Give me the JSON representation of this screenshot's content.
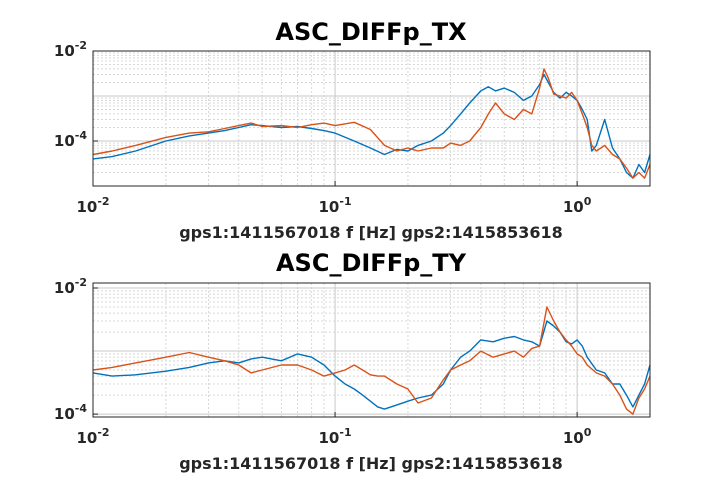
{
  "chart_data": [
    {
      "type": "line",
      "title": "ASC_DIFFp_TX",
      "xlabel": "gps1:1411567018  f [Hz]  gps2:1415853618",
      "xscale": "log",
      "yscale": "log",
      "xlim": [
        0.01,
        2
      ],
      "ylim": [
        1e-05,
        0.01
      ],
      "grid": true,
      "xticks": [
        {
          "base": "10",
          "exp": "-2",
          "value": 0.01
        },
        {
          "base": "10",
          "exp": "-1",
          "value": 0.1
        },
        {
          "base": "10",
          "exp": "0",
          "value": 1
        }
      ],
      "yticks": [
        {
          "base": "10",
          "exp": "-4",
          "value": 0.0001
        },
        {
          "base": "10",
          "exp": "-2",
          "value": 0.01
        }
      ],
      "series": [
        {
          "color": "#0072BD",
          "x": [
            0.01,
            0.012,
            0.015,
            0.02,
            0.025,
            0.03,
            0.035,
            0.04,
            0.045,
            0.05,
            0.06,
            0.07,
            0.08,
            0.09,
            0.1,
            0.12,
            0.14,
            0.16,
            0.18,
            0.2,
            0.22,
            0.25,
            0.28,
            0.3,
            0.33,
            0.36,
            0.4,
            0.43,
            0.46,
            0.5,
            0.55,
            0.6,
            0.65,
            0.7,
            0.73,
            0.76,
            0.8,
            0.85,
            0.9,
            0.95,
            1.0,
            1.05,
            1.1,
            1.15,
            1.2,
            1.3,
            1.4,
            1.5,
            1.6,
            1.7,
            1.8,
            1.9,
            2.0
          ],
          "y": [
            4e-05,
            4.5e-05,
            6e-05,
            0.0001,
            0.00013,
            0.00015,
            0.00017,
            0.0002,
            0.00023,
            0.00022,
            0.0002,
            0.00021,
            0.00019,
            0.00017,
            0.00015,
            0.0001,
            7e-05,
            5e-05,
            6.5e-05,
            6e-05,
            8e-05,
            0.0001,
            0.00015,
            0.00022,
            0.0004,
            0.0007,
            0.0013,
            0.0016,
            0.0013,
            0.0015,
            0.0012,
            0.0008,
            0.001,
            0.0018,
            0.003,
            0.002,
            0.0012,
            0.0009,
            0.0012,
            0.001,
            0.0008,
            0.0005,
            0.0003,
            6e-05,
            8e-05,
            0.0003,
            7e-05,
            4e-05,
            2e-05,
            1.5e-05,
            3e-05,
            2e-05,
            5e-05
          ]
        },
        {
          "color": "#D95319",
          "x": [
            0.01,
            0.012,
            0.015,
            0.02,
            0.025,
            0.03,
            0.035,
            0.04,
            0.045,
            0.05,
            0.06,
            0.07,
            0.08,
            0.09,
            0.1,
            0.12,
            0.14,
            0.16,
            0.18,
            0.2,
            0.22,
            0.25,
            0.28,
            0.3,
            0.33,
            0.36,
            0.4,
            0.43,
            0.46,
            0.5,
            0.55,
            0.6,
            0.65,
            0.7,
            0.73,
            0.76,
            0.8,
            0.85,
            0.9,
            0.95,
            1.0,
            1.05,
            1.1,
            1.15,
            1.2,
            1.3,
            1.4,
            1.5,
            1.6,
            1.7,
            1.8,
            1.9,
            2.0
          ],
          "y": [
            5e-05,
            6e-05,
            8e-05,
            0.00012,
            0.00015,
            0.00016,
            0.00019,
            0.00022,
            0.00025,
            0.00021,
            0.00022,
            0.0002,
            0.00023,
            0.00025,
            0.00022,
            0.00026,
            0.00018,
            8e-05,
            6e-05,
            7e-05,
            6e-05,
            7e-05,
            7e-05,
            9e-05,
            8e-05,
            0.0001,
            0.0002,
            0.0004,
            0.0007,
            0.0004,
            0.0003,
            0.0005,
            0.0004,
            0.0015,
            0.004,
            0.0025,
            0.0011,
            0.001,
            0.0009,
            0.0012,
            0.0008,
            0.0004,
            0.0002,
            8e-05,
            6e-05,
            8e-05,
            5e-05,
            4e-05,
            2.5e-05,
            1.5e-05,
            2e-05,
            1.5e-05,
            3e-05
          ]
        }
      ]
    },
    {
      "type": "line",
      "title": "ASC_DIFFp_TY",
      "xlabel": "gps1:1411567018  f [Hz]  gps2:1415853618",
      "xscale": "log",
      "yscale": "log",
      "xlim": [
        0.01,
        2
      ],
      "ylim": [
        9e-05,
        0.012
      ],
      "grid": true,
      "xticks": [
        {
          "base": "10",
          "exp": "-2",
          "value": 0.01
        },
        {
          "base": "10",
          "exp": "-1",
          "value": 0.1
        },
        {
          "base": "10",
          "exp": "0",
          "value": 1
        }
      ],
      "yticks": [
        {
          "base": "10",
          "exp": "-4",
          "value": 0.0001
        },
        {
          "base": "10",
          "exp": "-2",
          "value": 0.01
        }
      ],
      "series": [
        {
          "color": "#0072BD",
          "x": [
            0.01,
            0.012,
            0.015,
            0.02,
            0.025,
            0.03,
            0.035,
            0.04,
            0.045,
            0.05,
            0.06,
            0.07,
            0.08,
            0.09,
            0.1,
            0.11,
            0.12,
            0.13,
            0.14,
            0.15,
            0.16,
            0.18,
            0.2,
            0.22,
            0.25,
            0.28,
            0.3,
            0.33,
            0.36,
            0.4,
            0.45,
            0.5,
            0.55,
            0.6,
            0.65,
            0.7,
            0.75,
            0.8,
            0.85,
            0.9,
            0.95,
            1.0,
            1.05,
            1.1,
            1.2,
            1.3,
            1.4,
            1.5,
            1.6,
            1.7,
            1.8,
            1.9,
            2.0
          ],
          "y": [
            0.00045,
            0.0004,
            0.00042,
            0.00048,
            0.00055,
            0.00065,
            0.0007,
            0.00065,
            0.00075,
            0.0008,
            0.0007,
            0.0009,
            0.0008,
            0.0006,
            0.0004,
            0.0003,
            0.00025,
            0.0002,
            0.00016,
            0.00013,
            0.00012,
            0.00014,
            0.00016,
            0.00018,
            0.0002,
            0.0003,
            0.0005,
            0.0008,
            0.001,
            0.0015,
            0.0014,
            0.0016,
            0.0017,
            0.0015,
            0.0014,
            0.0012,
            0.003,
            0.0025,
            0.002,
            0.0014,
            0.0013,
            0.0015,
            0.0012,
            0.0008,
            0.0005,
            0.00045,
            0.0003,
            0.0003,
            0.0002,
            0.00013,
            0.0002,
            0.0003,
            0.0006
          ]
        },
        {
          "color": "#D95319",
          "x": [
            0.01,
            0.012,
            0.015,
            0.02,
            0.025,
            0.03,
            0.035,
            0.04,
            0.045,
            0.05,
            0.06,
            0.07,
            0.08,
            0.09,
            0.1,
            0.11,
            0.12,
            0.13,
            0.14,
            0.15,
            0.16,
            0.18,
            0.2,
            0.22,
            0.25,
            0.28,
            0.3,
            0.33,
            0.36,
            0.4,
            0.45,
            0.5,
            0.55,
            0.6,
            0.65,
            0.7,
            0.75,
            0.8,
            0.85,
            0.9,
            0.95,
            1.0,
            1.05,
            1.1,
            1.2,
            1.3,
            1.4,
            1.5,
            1.6,
            1.7,
            1.8,
            1.9,
            2.0
          ],
          "y": [
            0.0005,
            0.00055,
            0.00065,
            0.0008,
            0.00095,
            0.0008,
            0.0007,
            0.0006,
            0.00045,
            0.0005,
            0.0006,
            0.0006,
            0.0005,
            0.0004,
            0.00045,
            0.0005,
            0.0006,
            0.0005,
            0.00042,
            0.0004,
            0.0004,
            0.0003,
            0.00025,
            0.00015,
            0.00018,
            0.00035,
            0.0005,
            0.0006,
            0.0007,
            0.001,
            0.0008,
            0.0009,
            0.001,
            0.0008,
            0.0011,
            0.0012,
            0.005,
            0.003,
            0.002,
            0.0015,
            0.0012,
            0.0009,
            0.0008,
            0.0006,
            0.00045,
            0.0004,
            0.0003,
            0.0002,
            0.00012,
            0.0001,
            0.00018,
            0.00025,
            0.0004
          ]
        }
      ]
    }
  ]
}
